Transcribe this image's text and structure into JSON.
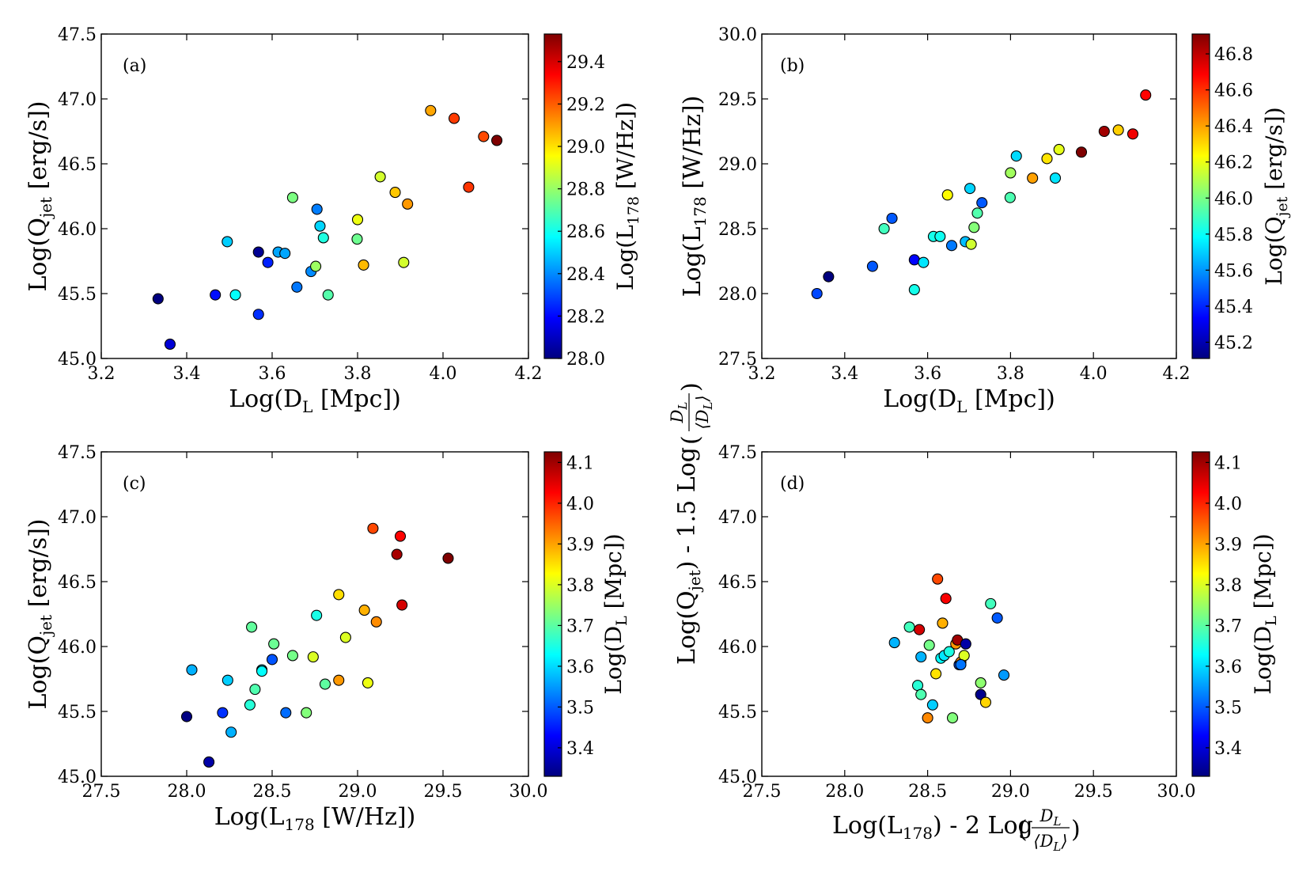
{
  "chart_data": [
    {
      "type": "scatter",
      "panel": "(a)",
      "title": "",
      "xlabel": "Log(D_L [Mpc])",
      "ylabel": "Log(Q_jet [erg/s])",
      "xlim": [
        3.2,
        4.2
      ],
      "ylim": [
        45.0,
        47.5
      ],
      "xticks": [
        "3.2",
        "3.4",
        "3.6",
        "3.8",
        "4.0",
        "4.2"
      ],
      "yticks": [
        "45.0",
        "45.5",
        "46.0",
        "46.5",
        "47.0",
        "47.5"
      ],
      "colorbar": {
        "label": "Log(L_178 [W/Hz])",
        "range": [
          28.0,
          29.53
        ],
        "ticks": [
          "28.0",
          "28.2",
          "28.4",
          "28.6",
          "28.8",
          "29.0",
          "29.2",
          "29.4"
        ]
      },
      "points": [
        {
          "x": 3.333,
          "y": 45.46,
          "c": 28.0
        },
        {
          "x": 3.361,
          "y": 45.11,
          "c": 28.13
        },
        {
          "x": 3.467,
          "y": 45.49,
          "c": 28.21
        },
        {
          "x": 3.495,
          "y": 45.9,
          "c": 28.5
        },
        {
          "x": 3.514,
          "y": 45.49,
          "c": 28.58
        },
        {
          "x": 3.568,
          "y": 45.82,
          "c": 28.03
        },
        {
          "x": 3.568,
          "y": 45.34,
          "c": 28.26
        },
        {
          "x": 3.59,
          "y": 45.74,
          "c": 28.24
        },
        {
          "x": 3.614,
          "y": 45.82,
          "c": 28.44
        },
        {
          "x": 3.63,
          "y": 45.81,
          "c": 28.44
        },
        {
          "x": 3.648,
          "y": 46.24,
          "c": 28.76
        },
        {
          "x": 3.658,
          "y": 45.55,
          "c": 28.37
        },
        {
          "x": 3.691,
          "y": 45.67,
          "c": 28.4
        },
        {
          "x": 3.702,
          "y": 45.71,
          "c": 28.81
        },
        {
          "x": 3.705,
          "y": 46.15,
          "c": 28.38
        },
        {
          "x": 3.712,
          "y": 46.02,
          "c": 28.51
        },
        {
          "x": 3.72,
          "y": 45.93,
          "c": 28.62
        },
        {
          "x": 3.731,
          "y": 45.49,
          "c": 28.7
        },
        {
          "x": 3.799,
          "y": 45.92,
          "c": 28.74
        },
        {
          "x": 3.8,
          "y": 46.07,
          "c": 28.93
        },
        {
          "x": 3.814,
          "y": 45.72,
          "c": 29.06
        },
        {
          "x": 3.853,
          "y": 46.4,
          "c": 28.89
        },
        {
          "x": 3.888,
          "y": 46.28,
          "c": 29.04
        },
        {
          "x": 3.908,
          "y": 45.74,
          "c": 28.89
        },
        {
          "x": 3.917,
          "y": 46.19,
          "c": 29.11
        },
        {
          "x": 3.971,
          "y": 46.91,
          "c": 29.09
        },
        {
          "x": 4.026,
          "y": 46.85,
          "c": 29.25
        },
        {
          "x": 4.06,
          "y": 46.32,
          "c": 29.26
        },
        {
          "x": 4.095,
          "y": 46.71,
          "c": 29.23
        },
        {
          "x": 4.126,
          "y": 46.68,
          "c": 29.53
        }
      ]
    },
    {
      "type": "scatter",
      "panel": "(b)",
      "title": "",
      "xlabel": "Log(D_L [Mpc])",
      "ylabel": "Log(L_178 [W/Hz])",
      "xlim": [
        3.2,
        4.2
      ],
      "ylim": [
        27.5,
        30.0
      ],
      "xticks": [
        "3.2",
        "3.4",
        "3.6",
        "3.8",
        "4.0",
        "4.2"
      ],
      "yticks": [
        "27.5",
        "28.0",
        "28.5",
        "29.0",
        "29.5",
        "30.0"
      ],
      "colorbar": {
        "label": "Log(Q_jet [erg/s])",
        "range": [
          45.11,
          46.91
        ],
        "ticks": [
          "45.2",
          "45.4",
          "45.6",
          "45.8",
          "46.0",
          "46.2",
          "46.4",
          "46.6",
          "46.8"
        ]
      },
      "points": [
        {
          "x": 3.333,
          "y": 28.0,
          "c": 45.46
        },
        {
          "x": 3.361,
          "y": 28.13,
          "c": 45.11
        },
        {
          "x": 3.467,
          "y": 28.21,
          "c": 45.49
        },
        {
          "x": 3.495,
          "y": 28.5,
          "c": 45.9
        },
        {
          "x": 3.514,
          "y": 28.58,
          "c": 45.49
        },
        {
          "x": 3.568,
          "y": 28.03,
          "c": 45.82
        },
        {
          "x": 3.568,
          "y": 28.26,
          "c": 45.34
        },
        {
          "x": 3.59,
          "y": 28.24,
          "c": 45.74
        },
        {
          "x": 3.614,
          "y": 28.44,
          "c": 45.82
        },
        {
          "x": 3.63,
          "y": 28.44,
          "c": 45.81
        },
        {
          "x": 3.648,
          "y": 28.76,
          "c": 46.24
        },
        {
          "x": 3.658,
          "y": 28.37,
          "c": 45.55
        },
        {
          "x": 3.691,
          "y": 28.4,
          "c": 45.67
        },
        {
          "x": 3.702,
          "y": 28.81,
          "c": 45.71
        },
        {
          "x": 3.705,
          "y": 28.38,
          "c": 46.15
        },
        {
          "x": 3.712,
          "y": 28.51,
          "c": 46.02
        },
        {
          "x": 3.72,
          "y": 28.62,
          "c": 45.93
        },
        {
          "x": 3.731,
          "y": 28.7,
          "c": 45.49
        },
        {
          "x": 3.799,
          "y": 28.74,
          "c": 45.92
        },
        {
          "x": 3.8,
          "y": 28.93,
          "c": 46.07
        },
        {
          "x": 3.814,
          "y": 29.06,
          "c": 45.72
        },
        {
          "x": 3.853,
          "y": 28.89,
          "c": 46.4
        },
        {
          "x": 3.888,
          "y": 29.04,
          "c": 46.28
        },
        {
          "x": 3.908,
          "y": 28.89,
          "c": 45.74
        },
        {
          "x": 3.917,
          "y": 29.11,
          "c": 46.19
        },
        {
          "x": 3.971,
          "y": 29.09,
          "c": 46.91
        },
        {
          "x": 4.026,
          "y": 29.25,
          "c": 46.85
        },
        {
          "x": 4.06,
          "y": 29.26,
          "c": 46.32
        },
        {
          "x": 4.095,
          "y": 29.23,
          "c": 46.71
        },
        {
          "x": 4.126,
          "y": 29.53,
          "c": 46.68
        }
      ]
    },
    {
      "type": "scatter",
      "panel": "(c)",
      "title": "",
      "xlabel": "Log(L_178 [W/Hz])",
      "ylabel": "Log(Q_jet [erg/s])",
      "xlim": [
        27.5,
        30.0
      ],
      "ylim": [
        45.0,
        47.5
      ],
      "xticks": [
        "27.5",
        "28.0",
        "28.5",
        "29.0",
        "29.5",
        "30.0"
      ],
      "yticks": [
        "45.0",
        "45.5",
        "46.0",
        "46.5",
        "47.0",
        "47.5"
      ],
      "colorbar": {
        "label": "Log(D_L [Mpc])",
        "range": [
          3.33,
          4.126
        ],
        "ticks": [
          "3.4",
          "3.5",
          "3.6",
          "3.7",
          "3.8",
          "3.9",
          "4.0",
          "4.1"
        ]
      },
      "points": [
        {
          "x": 28.0,
          "y": 45.46,
          "c": 3.333
        },
        {
          "x": 28.13,
          "y": 45.11,
          "c": 3.361
        },
        {
          "x": 28.21,
          "y": 45.49,
          "c": 3.467
        },
        {
          "x": 28.03,
          "y": 45.82,
          "c": 3.568
        },
        {
          "x": 28.24,
          "y": 45.74,
          "c": 3.59
        },
        {
          "x": 28.26,
          "y": 45.34,
          "c": 3.568
        },
        {
          "x": 28.37,
          "y": 45.55,
          "c": 3.658
        },
        {
          "x": 28.38,
          "y": 46.15,
          "c": 3.705
        },
        {
          "x": 28.4,
          "y": 45.67,
          "c": 3.691
        },
        {
          "x": 28.44,
          "y": 45.82,
          "c": 3.614
        },
        {
          "x": 28.44,
          "y": 45.81,
          "c": 3.63
        },
        {
          "x": 28.5,
          "y": 45.9,
          "c": 3.495
        },
        {
          "x": 28.51,
          "y": 46.02,
          "c": 3.712
        },
        {
          "x": 28.58,
          "y": 45.49,
          "c": 3.514
        },
        {
          "x": 28.62,
          "y": 45.93,
          "c": 3.72
        },
        {
          "x": 28.7,
          "y": 45.49,
          "c": 3.731
        },
        {
          "x": 28.74,
          "y": 45.92,
          "c": 3.799
        },
        {
          "x": 28.76,
          "y": 46.24,
          "c": 3.648
        },
        {
          "x": 28.81,
          "y": 45.71,
          "c": 3.702
        },
        {
          "x": 28.89,
          "y": 46.4,
          "c": 3.853
        },
        {
          "x": 28.89,
          "y": 45.74,
          "c": 3.908
        },
        {
          "x": 28.93,
          "y": 46.07,
          "c": 3.8
        },
        {
          "x": 29.04,
          "y": 46.28,
          "c": 3.888
        },
        {
          "x": 29.06,
          "y": 45.72,
          "c": 3.814
        },
        {
          "x": 29.09,
          "y": 46.91,
          "c": 3.971
        },
        {
          "x": 29.11,
          "y": 46.19,
          "c": 3.917
        },
        {
          "x": 29.23,
          "y": 46.71,
          "c": 4.095
        },
        {
          "x": 29.25,
          "y": 46.85,
          "c": 4.026
        },
        {
          "x": 29.26,
          "y": 46.32,
          "c": 4.06
        },
        {
          "x": 29.53,
          "y": 46.68,
          "c": 4.126
        }
      ]
    },
    {
      "type": "scatter",
      "panel": "(d)",
      "title": "",
      "xlabel": "Log(L_178) - 2 Log(D_L/⟨D_L⟩)",
      "ylabel": "Log(Q_jet) - 1.5 Log(D_L/⟨D_L⟩)",
      "xlim": [
        27.5,
        30.0
      ],
      "ylim": [
        45.0,
        47.5
      ],
      "xticks": [
        "27.5",
        "28.0",
        "28.5",
        "29.0",
        "29.5",
        "30.0"
      ],
      "yticks": [
        "45.0",
        "45.5",
        "46.0",
        "46.5",
        "47.0",
        "47.5"
      ],
      "colorbar": {
        "label": "Log(D_L [Mpc])",
        "range": [
          3.33,
          4.126
        ],
        "ticks": [
          "3.4",
          "3.5",
          "3.6",
          "3.7",
          "3.8",
          "3.9",
          "4.0",
          "4.1"
        ]
      },
      "points": [
        {
          "x": 28.3,
          "y": 46.03,
          "c": 3.57
        },
        {
          "x": 28.39,
          "y": 46.15,
          "c": 3.68
        },
        {
          "x": 28.45,
          "y": 46.13,
          "c": 4.06
        },
        {
          "x": 28.46,
          "y": 45.92,
          "c": 3.57
        },
        {
          "x": 28.44,
          "y": 45.7,
          "c": 3.66
        },
        {
          "x": 28.46,
          "y": 45.63,
          "c": 3.69
        },
        {
          "x": 28.5,
          "y": 45.45,
          "c": 3.92
        },
        {
          "x": 28.51,
          "y": 46.01,
          "c": 3.72
        },
        {
          "x": 28.53,
          "y": 45.55,
          "c": 3.59
        },
        {
          "x": 28.55,
          "y": 45.79,
          "c": 3.85
        },
        {
          "x": 28.56,
          "y": 46.52,
          "c": 3.97
        },
        {
          "x": 28.58,
          "y": 45.91,
          "c": 3.63
        },
        {
          "x": 28.59,
          "y": 46.18,
          "c": 3.89
        },
        {
          "x": 28.6,
          "y": 45.93,
          "c": 3.61
        },
        {
          "x": 28.61,
          "y": 46.37,
          "c": 4.03
        },
        {
          "x": 28.63,
          "y": 45.96,
          "c": 3.65
        },
        {
          "x": 28.65,
          "y": 45.45,
          "c": 3.73
        },
        {
          "x": 28.67,
          "y": 46.02,
          "c": 3.91
        },
        {
          "x": 28.68,
          "y": 46.05,
          "c": 4.1
        },
        {
          "x": 28.69,
          "y": 45.86,
          "c": 3.49
        },
        {
          "x": 28.7,
          "y": 45.88,
          "c": 3.92
        },
        {
          "x": 28.72,
          "y": 45.93,
          "c": 3.8
        },
        {
          "x": 28.73,
          "y": 46.02,
          "c": 3.36
        },
        {
          "x": 28.82,
          "y": 45.63,
          "c": 3.34
        },
        {
          "x": 28.82,
          "y": 45.72,
          "c": 3.74
        },
        {
          "x": 28.85,
          "y": 45.57,
          "c": 3.86
        },
        {
          "x": 28.88,
          "y": 46.33,
          "c": 3.68
        },
        {
          "x": 28.92,
          "y": 46.22,
          "c": 3.5
        },
        {
          "x": 28.96,
          "y": 45.78,
          "c": 3.55
        },
        {
          "x": 28.7,
          "y": 45.86,
          "c": 3.52
        }
      ]
    }
  ]
}
